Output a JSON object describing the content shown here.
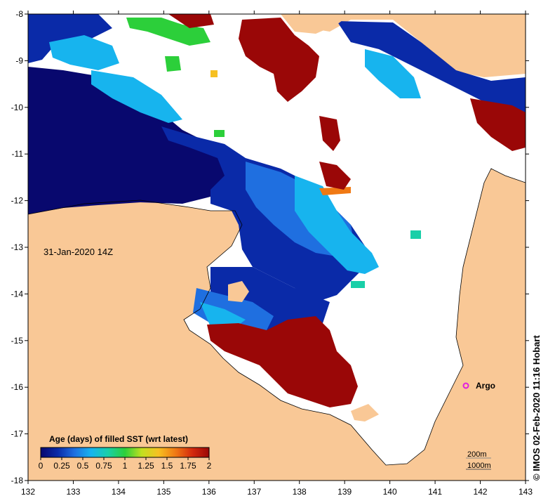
{
  "map": {
    "timestamp_label": "31-Jan-2020 14Z",
    "credit": "© IMOS 02-Feb-2020 11:16 Hobart",
    "colors": {
      "land": "#f9c896",
      "no_data": "#ffffff",
      "argo": "#e01ee0"
    },
    "x_ticks": [
      "132",
      "133",
      "134",
      "135",
      "136",
      "137",
      "138",
      "139",
      "140",
      "141",
      "142",
      "143"
    ],
    "y_ticks": [
      "-8",
      "-9",
      "-10",
      "-11",
      "-12",
      "-13",
      "-14",
      "-15",
      "-16",
      "-17",
      "-18"
    ],
    "legend": {
      "title": "Age (days) of filled SST (wrt latest)",
      "ticks": [
        "0",
        "0.25",
        "0.5",
        "0.75",
        "1",
        "1.25",
        "1.5",
        "1.75",
        "2"
      ],
      "colors": [
        "#08086e",
        "#0a2aa8",
        "#1f6fe0",
        "#17b4ee",
        "#19cfa8",
        "#2ccf3a",
        "#c2e020",
        "#f6c021",
        "#f07914",
        "#d42a0e",
        "#9a0707"
      ]
    },
    "scale": {
      "label_1": "200m",
      "label_2": "1000m"
    },
    "argo": {
      "label": "Argo"
    }
  }
}
